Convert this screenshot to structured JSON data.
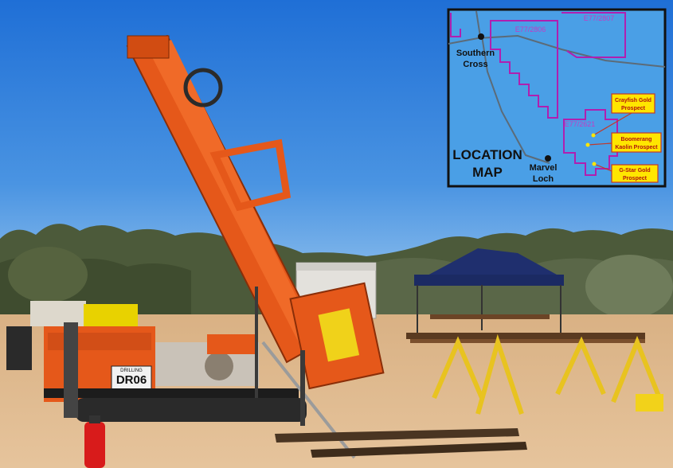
{
  "photo": {
    "rig_plate": "DR06",
    "rig_brand": "DRILLING"
  },
  "map": {
    "title_line1": "LOCATION",
    "title_line2": "MAP",
    "town1_line1": "Southern",
    "town1_line2": "Cross",
    "town2_line1": "Marvel",
    "town2_line2": "Loch",
    "tenement1": "E77/2806",
    "tenement2": "E77/2807",
    "tenement3": "E77/2621",
    "prospect1_line1": "Crayfish Gold",
    "prospect1_line2": "Prospect",
    "prospect2_line1": "Boomerang",
    "prospect2_line2": "Kaolin Prospect",
    "prospect3_line1": "G-Star Gold",
    "prospect3_line2": "Prospect",
    "colors": {
      "water": "#4a9fe6",
      "boundary": "#b01fb0",
      "road": "#5c6b78",
      "label_fill": "#ffe600",
      "label_border": "#c0392b"
    }
  }
}
